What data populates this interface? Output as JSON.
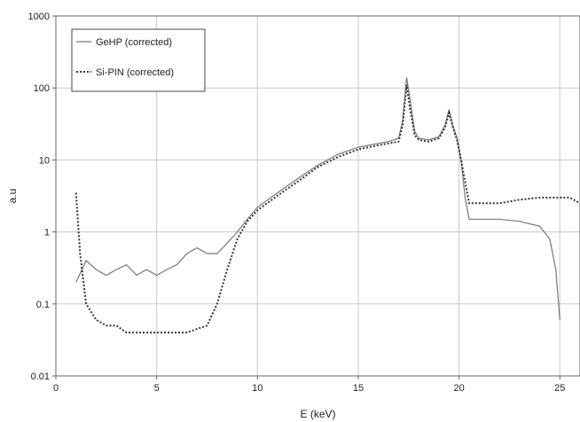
{
  "chart_data": {
    "type": "line",
    "xlabel": "E (keV)",
    "ylabel": "a.u",
    "xlim": [
      0,
      26
    ],
    "ylim": [
      0.01,
      1000
    ],
    "y_scale": "log",
    "x_ticks": [
      0,
      5,
      10,
      15,
      20,
      25
    ],
    "x_tick_labels": [
      "0",
      "5",
      "10",
      "15",
      "20",
      "25"
    ],
    "y_ticks": [
      0.01,
      0.1,
      1,
      10,
      100,
      1000
    ],
    "y_tick_labels": [
      "0.01",
      "0.1",
      "1",
      "10",
      "100",
      "1000"
    ],
    "grid": "major gridlines on both axes",
    "legend_position": "top-left",
    "series": [
      {
        "name": "GeHP (corrected)",
        "style": "solid",
        "color": "#777777",
        "x": [
          1.0,
          1.5,
          2.0,
          2.5,
          3.0,
          3.5,
          4.0,
          4.5,
          5.0,
          5.5,
          6.0,
          6.5,
          7.0,
          7.5,
          8.0,
          8.5,
          9.0,
          9.5,
          10.0,
          11.0,
          12.0,
          13.0,
          14.0,
          15.0,
          16.0,
          16.5,
          17.0,
          17.2,
          17.4,
          17.6,
          17.8,
          18.0,
          18.5,
          19.0,
          19.3,
          19.5,
          19.7,
          19.9,
          20.1,
          20.3,
          20.5,
          21.0,
          22.0,
          23.0,
          24.0,
          24.5,
          24.8,
          25.0
        ],
        "y": [
          0.2,
          0.4,
          0.3,
          0.25,
          0.3,
          0.35,
          0.25,
          0.3,
          0.25,
          0.3,
          0.35,
          0.5,
          0.6,
          0.5,
          0.5,
          0.7,
          1.0,
          1.5,
          2.2,
          3.5,
          5.5,
          8.5,
          12,
          15,
          17,
          18,
          20,
          35,
          140,
          60,
          25,
          20,
          19,
          21,
          30,
          50,
          30,
          20,
          10,
          3,
          1.5,
          1.5,
          1.5,
          1.4,
          1.2,
          0.8,
          0.3,
          0.06
        ]
      },
      {
        "name": "Si-PIN (corrected)",
        "style": "dotted",
        "color": "#333333",
        "x": [
          1.0,
          1.2,
          1.5,
          2.0,
          2.5,
          3.0,
          3.5,
          4.0,
          4.5,
          5.0,
          5.5,
          6.0,
          6.5,
          7.0,
          7.5,
          8.0,
          8.5,
          9.0,
          9.5,
          10.0,
          11.0,
          12.0,
          13.0,
          14.0,
          15.0,
          16.0,
          16.5,
          17.0,
          17.2,
          17.4,
          17.6,
          17.8,
          18.0,
          18.5,
          19.0,
          19.3,
          19.5,
          19.7,
          19.9,
          20.1,
          20.3,
          20.5,
          21.0,
          22.0,
          23.0,
          24.0,
          25.0,
          25.5,
          26.0
        ],
        "y": [
          3.5,
          0.5,
          0.1,
          0.06,
          0.05,
          0.05,
          0.04,
          0.04,
          0.04,
          0.04,
          0.04,
          0.04,
          0.04,
          0.045,
          0.05,
          0.1,
          0.3,
          0.8,
          1.4,
          2.0,
          3.2,
          5,
          8,
          11,
          14,
          16,
          17,
          18,
          30,
          110,
          45,
          22,
          19,
          18,
          20,
          28,
          45,
          28,
          19,
          10,
          5,
          2.5,
          2.5,
          2.5,
          2.8,
          3.0,
          3.0,
          3.0,
          2.5
        ]
      }
    ]
  }
}
